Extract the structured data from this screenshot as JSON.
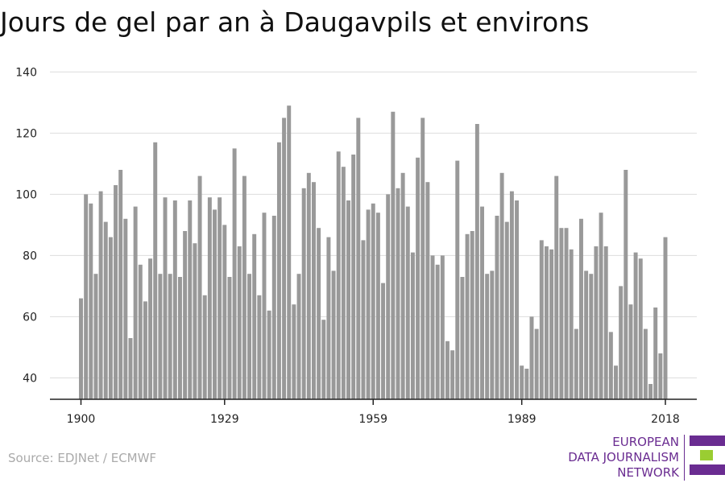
{
  "title": "Jours de gel par an à Daugavpils et environs",
  "source": "Source: EDJNet / ECMWF",
  "logo": {
    "lines": [
      "EUROPEAN",
      "DATA JOURNALISM",
      "NETWORK"
    ],
    "colors": {
      "purple": "#6a2c91",
      "green": "#9acd32"
    }
  },
  "chart_data": {
    "type": "bar",
    "title": "Jours de gel par an à Daugavpils et environs",
    "xlabel": "",
    "ylabel": "",
    "x_start": 1900,
    "x_end": 2018,
    "x_ticks": [
      1900,
      1929,
      1959,
      1989,
      2018
    ],
    "y_ticks": [
      40,
      60,
      80,
      100,
      120,
      140
    ],
    "ylim": [
      33,
      143
    ],
    "grid": true,
    "bar_color": "#999999",
    "values": [
      66,
      100,
      97,
      74,
      101,
      91,
      86,
      103,
      108,
      92,
      53,
      96,
      77,
      65,
      79,
      117,
      74,
      99,
      74,
      98,
      73,
      88,
      98,
      84,
      106,
      67,
      99,
      95,
      99,
      90,
      73,
      115,
      83,
      106,
      74,
      87,
      67,
      94,
      62,
      93,
      117,
      125,
      129,
      64,
      74,
      102,
      107,
      104,
      89,
      59,
      86,
      75,
      114,
      109,
      98,
      113,
      125,
      85,
      95,
      97,
      94,
      71,
      100,
      127,
      102,
      107,
      96,
      81,
      112,
      125,
      104,
      80,
      77,
      80,
      52,
      49,
      111,
      73,
      87,
      88,
      123,
      96,
      74,
      75,
      93,
      107,
      91,
      101,
      98,
      44,
      43,
      60,
      56,
      85,
      83,
      82,
      106,
      89,
      89,
      82,
      56,
      92,
      75,
      74,
      83,
      94,
      83,
      55,
      44,
      70,
      108,
      64,
      81,
      79,
      56,
      38,
      63,
      48,
      86
    ]
  }
}
